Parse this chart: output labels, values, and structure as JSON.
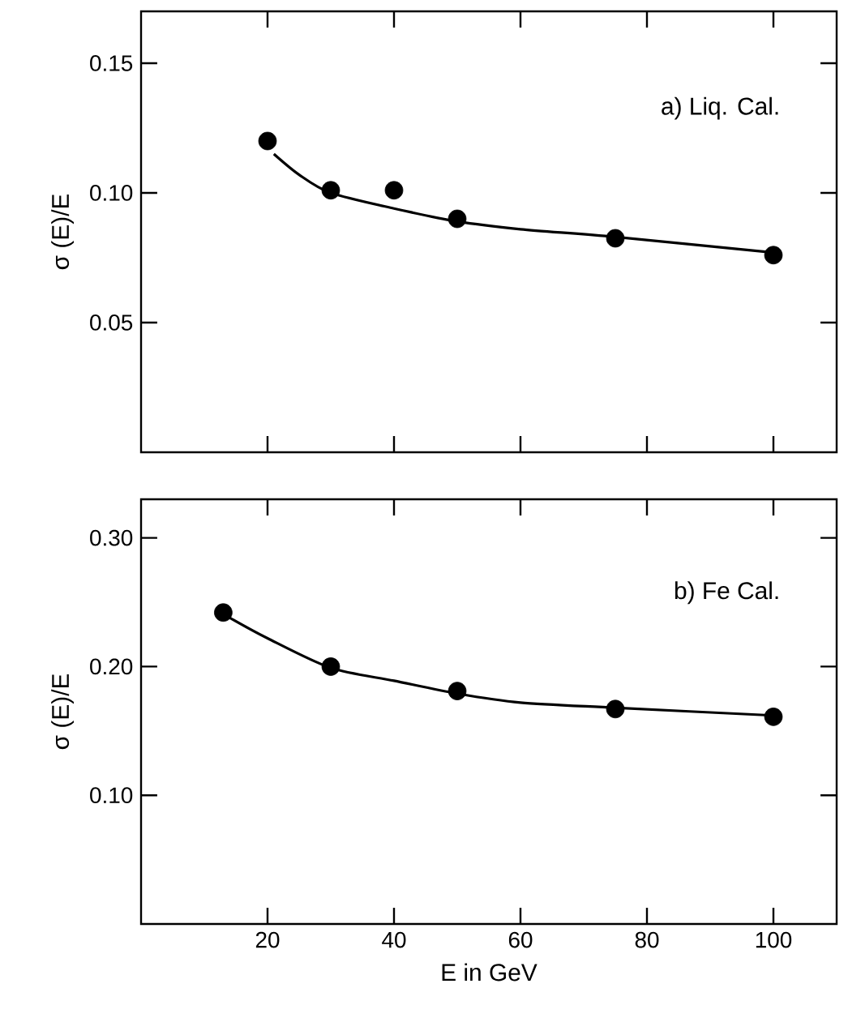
{
  "chart_data": [
    {
      "type": "scatter",
      "ylabel": "σ (E)/E",
      "annotations": [
        "a) Liq. Cal."
      ],
      "xlim": [
        0,
        110
      ],
      "ylim": [
        0,
        0.17
      ],
      "xticks": [
        20,
        40,
        60,
        80,
        100
      ],
      "yticks": [
        0.05,
        {
          "value": 0.1,
          "label": "0.10"
        },
        0.15
      ],
      "tick_labels": "y",
      "series": [
        {
          "type": "line",
          "marker": "none",
          "color": "#000000",
          "x": [
            21,
            25,
            30,
            40,
            50,
            60,
            75,
            100
          ],
          "values": [
            0.115,
            0.107,
            0.1,
            0.094,
            0.089,
            0.086,
            0.083,
            0.077
          ]
        },
        {
          "marker": "circle",
          "color": "#000000",
          "x": [
            20,
            30,
            40,
            50,
            75,
            100
          ],
          "values": [
            0.12,
            0.101,
            0.101,
            0.09,
            0.0825,
            0.076
          ]
        }
      ]
    },
    {
      "type": "scatter",
      "ylabel": "σ (E)/E",
      "xlabel": "E in GeV",
      "annotations": [
        "b) Fe Cal."
      ],
      "xlim": [
        0,
        110
      ],
      "ylim": [
        0,
        0.33
      ],
      "xticks": [
        20,
        40,
        60,
        80,
        100
      ],
      "yticks": [
        {
          "value": 0.1,
          "label": "0.10"
        },
        {
          "value": 0.2,
          "label": "0.20"
        },
        {
          "value": 0.3,
          "label": "0.30"
        }
      ],
      "series": [
        {
          "type": "line",
          "marker": "none",
          "color": "#000000",
          "x": [
            14,
            20,
            30,
            40,
            50,
            60,
            75,
            100
          ],
          "values": [
            0.238,
            0.222,
            0.199,
            0.189,
            0.179,
            0.172,
            0.168,
            0.162
          ]
        },
        {
          "marker": "circle",
          "color": "#000000",
          "x": [
            13,
            30,
            50,
            75,
            100
          ],
          "values": [
            0.242,
            0.2,
            0.181,
            0.167,
            0.161
          ]
        }
      ]
    }
  ]
}
